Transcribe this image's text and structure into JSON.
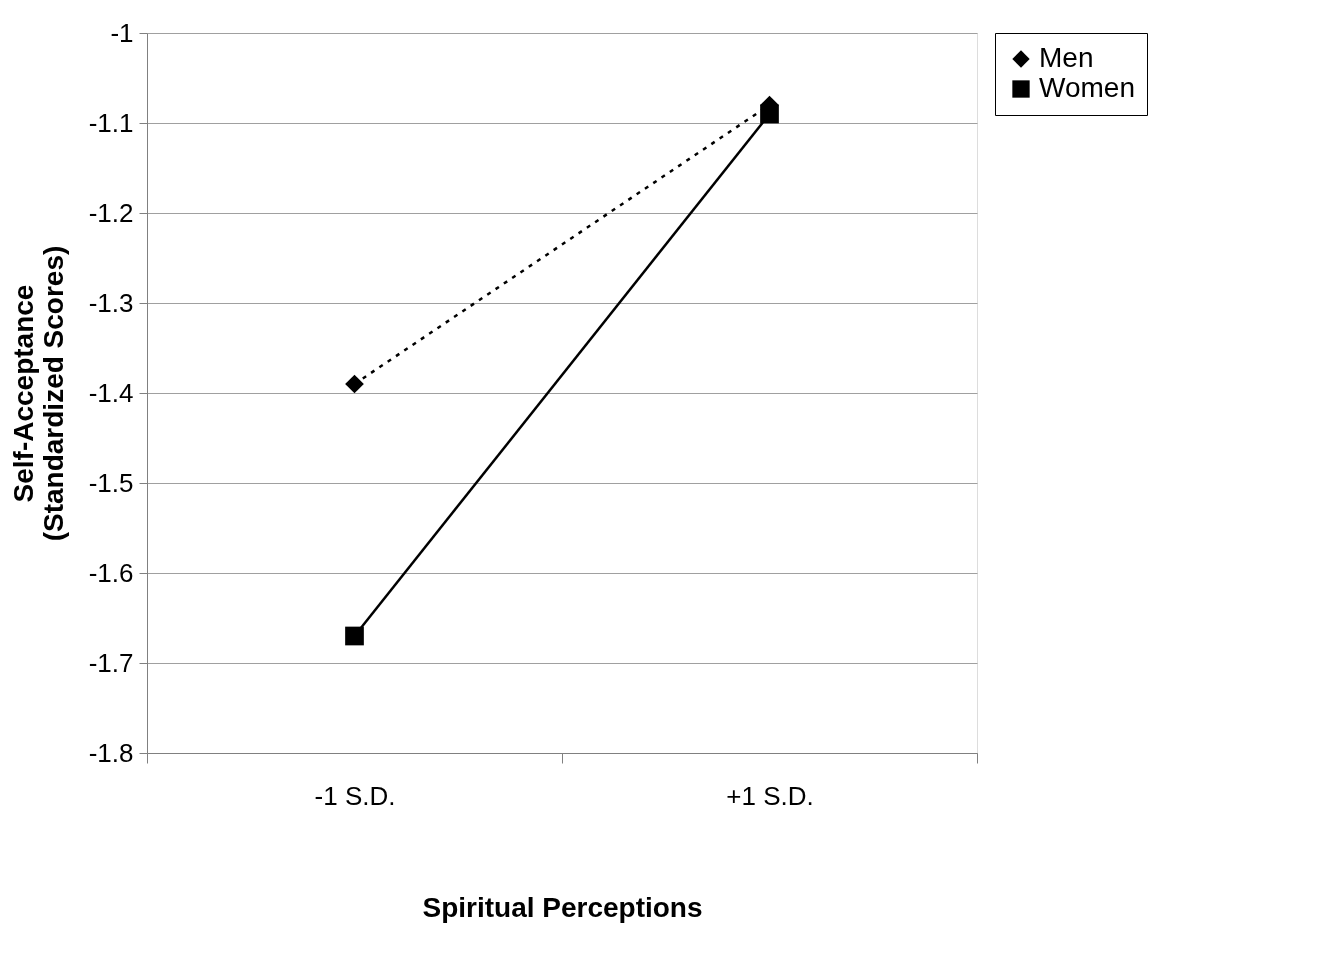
{
  "chart_data": {
    "type": "line",
    "xlabel": "Spiritual Perceptions",
    "ylabel": "Self-Acceptance\n(Standardized Scores)",
    "categories": [
      "-1 S.D.",
      "+1 S.D."
    ],
    "series": [
      {
        "name": "Men",
        "color": "#000000",
        "values": [
          -1.39,
          -1.08
        ],
        "marker": "diamond",
        "line_style": "dotted"
      },
      {
        "name": "Women",
        "color": "#000000",
        "values": [
          -1.67,
          -1.09
        ],
        "marker": "square",
        "line_style": "solid"
      }
    ],
    "ylim": [
      -1.8,
      -1.0
    ],
    "yticks": [
      -1.8,
      -1.7,
      -1.6,
      -1.5,
      -1.4,
      -1.3,
      -1.2,
      -1.1,
      -1
    ],
    "grid": "y",
    "legend": "right"
  }
}
